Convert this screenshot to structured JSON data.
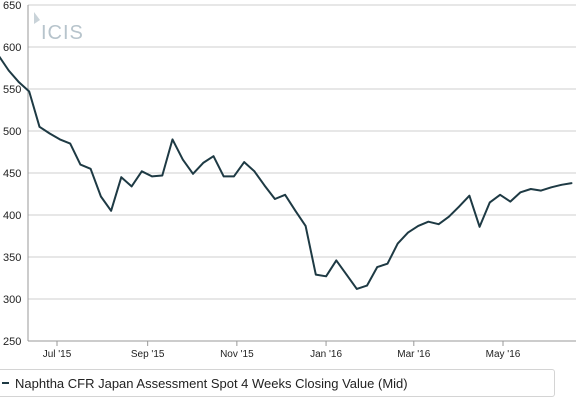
{
  "watermark": "ICIS",
  "legend": {
    "label": "Naphtha CFR Japan Assessment Spot 4 Weeks Closing Value (Mid)"
  },
  "chart_data": {
    "type": "line",
    "ylim": [
      250,
      650
    ],
    "y_ticks": [
      650,
      600,
      550,
      500,
      450,
      400,
      350,
      300,
      250
    ],
    "x_tick_labels": [
      "Jul '15",
      "Sep '15",
      "Nov '15",
      "Jan '16",
      "Mar '16",
      "May '16"
    ],
    "x_tick_dates": [
      "2015-07-01",
      "2015-09-01",
      "2015-11-01",
      "2016-01-01",
      "2016-03-01",
      "2016-05-01"
    ],
    "grid": "horizontal",
    "series": [
      {
        "color": "#1e3a44",
        "x": [
          "2015-05-22",
          "2015-05-29",
          "2015-06-05",
          "2015-06-12",
          "2015-06-19",
          "2015-06-26",
          "2015-07-03",
          "2015-07-10",
          "2015-07-17",
          "2015-07-24",
          "2015-07-31",
          "2015-08-07",
          "2015-08-14",
          "2015-08-21",
          "2015-08-28",
          "2015-09-04",
          "2015-09-11",
          "2015-09-18",
          "2015-09-25",
          "2015-10-02",
          "2015-10-09",
          "2015-10-16",
          "2015-10-23",
          "2015-10-30",
          "2015-11-06",
          "2015-11-13",
          "2015-11-20",
          "2015-11-27",
          "2015-12-04",
          "2015-12-11",
          "2015-12-18",
          "2015-12-25",
          "2016-01-01",
          "2016-01-08",
          "2016-01-15",
          "2016-01-22",
          "2016-01-29",
          "2016-02-05",
          "2016-02-12",
          "2016-02-19",
          "2016-02-26",
          "2016-03-04",
          "2016-03-11",
          "2016-03-18",
          "2016-03-25",
          "2016-04-01",
          "2016-04-08",
          "2016-04-15",
          "2016-04-22",
          "2016-04-29",
          "2016-05-06",
          "2016-05-13",
          "2016-05-20",
          "2016-05-27",
          "2016-06-03",
          "2016-06-10",
          "2016-06-17"
        ],
        "values": [
          590,
          572,
          558,
          547,
          505,
          497,
          490,
          485,
          460,
          455,
          422,
          405,
          445,
          434,
          452,
          446,
          447,
          490,
          466,
          449,
          462,
          470,
          446,
          446,
          463,
          452,
          435,
          419,
          424,
          405,
          387,
          329,
          327,
          346,
          329,
          312,
          316,
          338,
          342,
          366,
          379,
          387,
          392,
          389,
          398,
          410,
          423,
          386,
          415,
          424,
          416,
          427,
          431,
          429,
          433,
          436,
          438
        ]
      }
    ]
  }
}
